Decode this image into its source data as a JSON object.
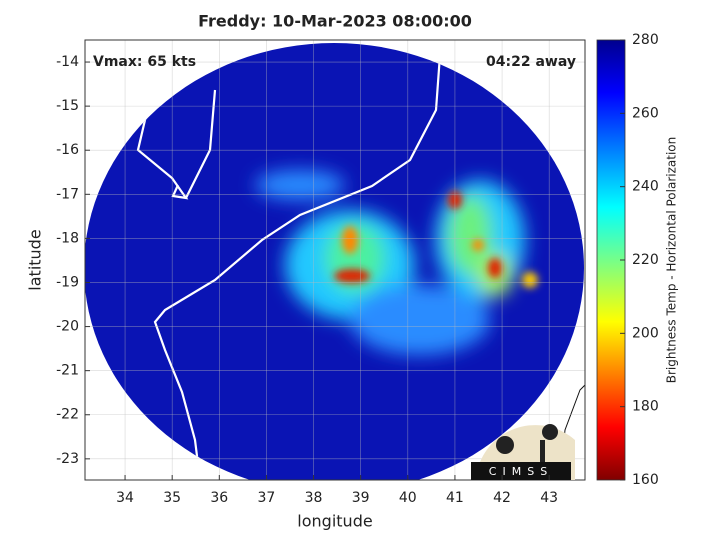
{
  "chart_data": {
    "type": "map",
    "title": "Freddy: 10-Mar-2023 08:00:00",
    "annotations": [
      "Vmax: 65 kts",
      "04:22 away"
    ],
    "x_label": "longitude",
    "y_label": "latitude",
    "xlim": [
      33.15,
      43.76
    ],
    "ylim": [
      -23.48,
      -13.5
    ],
    "xticks": [
      34,
      35,
      36,
      37,
      38,
      39,
      40,
      41,
      42,
      43
    ],
    "yticks": [
      -23,
      -22,
      -21,
      -20,
      -19,
      -18,
      -17,
      -16,
      -15,
      -14
    ],
    "grid": true,
    "colorbar": {
      "label": "Brightness Temp - Horizontal Polarization",
      "clim": [
        160,
        280
      ],
      "ticks": [
        160,
        180,
        200,
        220,
        240,
        260,
        280
      ],
      "colormap": "jet"
    },
    "logo": "CIMSS"
  }
}
